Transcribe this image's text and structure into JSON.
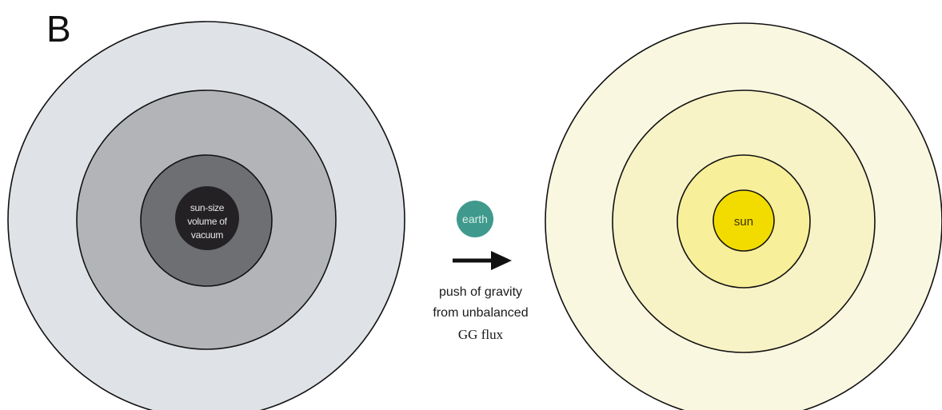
{
  "panel_label": "B",
  "left_system": {
    "center_label_lines": [
      "sun-size",
      "volume of",
      "vacuum"
    ],
    "ring_colors": [
      "#dfe2e6",
      "#b2b4b7",
      "#6d6f72",
      "#232124"
    ]
  },
  "earth": {
    "label": "earth",
    "color": "#3f9a8d"
  },
  "force_caption": {
    "lines": [
      "push of gravity",
      "from unbalanced",
      "GG flux"
    ]
  },
  "right_system": {
    "center_label": "sun",
    "ring_colors": [
      "#faf7e0",
      "#f8f3c6",
      "#f7ef9a",
      "#f2dc00"
    ]
  },
  "colors": {
    "outline": "#111111",
    "arrow": "#111111"
  }
}
